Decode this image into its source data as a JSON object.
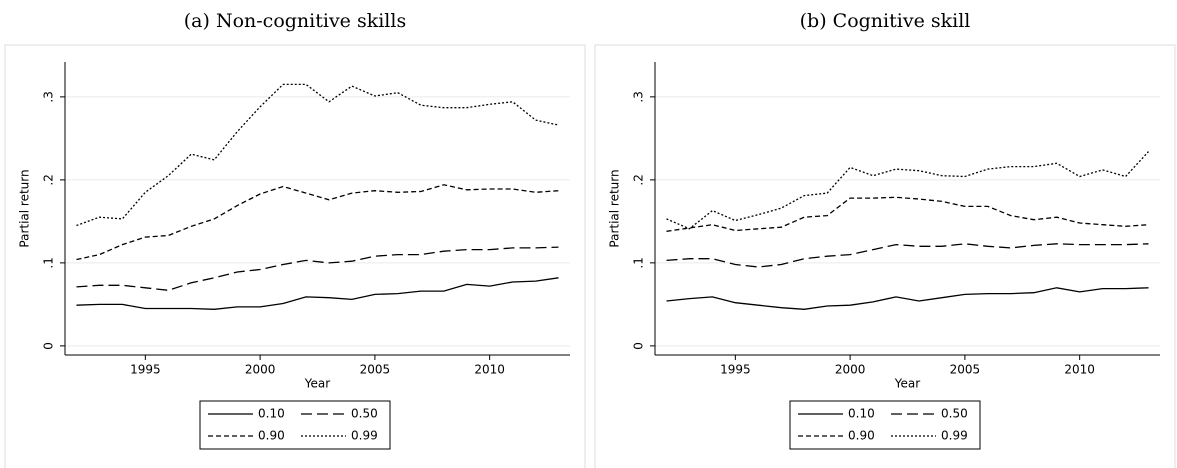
{
  "chart_data": [
    {
      "type": "line",
      "title": "(a) Non-cognitive skills",
      "xlabel": "Year",
      "ylabel": "Partial return",
      "x": [
        1992,
        1993,
        1994,
        1995,
        1996,
        1997,
        1998,
        1999,
        2000,
        2001,
        2002,
        2003,
        2004,
        2005,
        2006,
        2007,
        2008,
        2009,
        2010,
        2011,
        2012,
        2013
      ],
      "xlim": [
        1991.5,
        2013.5
      ],
      "xticks": [
        1995,
        2000,
        2005,
        2010
      ],
      "ylim": [
        -0.011,
        0.342
      ],
      "yticks": [
        0,
        {
          "value": 0.1,
          "label": ".1"
        },
        {
          "value": 0.2,
          "label": ".2"
        },
        {
          "value": 0.3,
          "label": ".3"
        }
      ],
      "grid": true,
      "series": [
        {
          "name": "0.10",
          "color": "#000000",
          "dash": "none",
          "values": [
            0.049,
            0.05,
            0.05,
            0.045,
            0.045,
            0.045,
            0.044,
            0.047,
            0.047,
            0.051,
            0.059,
            0.058,
            0.056,
            0.062,
            0.063,
            0.066,
            0.066,
            0.074,
            0.072,
            0.077,
            0.078,
            0.082
          ]
        },
        {
          "name": "0.50",
          "color": "#000000",
          "dash": "11,5",
          "values": [
            0.071,
            0.073,
            0.073,
            0.07,
            0.067,
            0.076,
            0.082,
            0.089,
            0.092,
            0.098,
            0.103,
            0.1,
            0.102,
            0.108,
            0.11,
            0.11,
            0.114,
            0.116,
            0.116,
            0.118,
            0.118,
            0.119
          ]
        },
        {
          "name": "0.90",
          "color": "#000000",
          "dash": "5,3",
          "values": [
            0.104,
            0.11,
            0.122,
            0.131,
            0.133,
            0.144,
            0.153,
            0.169,
            0.183,
            0.192,
            0.184,
            0.176,
            0.184,
            0.187,
            0.185,
            0.186,
            0.194,
            0.188,
            0.189,
            0.189,
            0.185,
            0.187
          ]
        },
        {
          "name": "0.99",
          "color": "#000000",
          "dash": "2,2",
          "values": [
            0.145,
            0.155,
            0.153,
            0.185,
            0.205,
            0.231,
            0.224,
            0.258,
            0.288,
            0.315,
            0.315,
            0.294,
            0.313,
            0.301,
            0.305,
            0.29,
            0.287,
            0.287,
            0.291,
            0.294,
            0.272,
            0.266
          ]
        }
      ]
    },
    {
      "type": "line",
      "title": "(b) Cognitive skill",
      "xlabel": "Year",
      "ylabel": "Partial return",
      "x": [
        1992,
        1993,
        1994,
        1995,
        1996,
        1997,
        1998,
        1999,
        2000,
        2001,
        2002,
        2003,
        2004,
        2005,
        2006,
        2007,
        2008,
        2009,
        2010,
        2011,
        2012,
        2013
      ],
      "xlim": [
        1991.5,
        2013.5
      ],
      "xticks": [
        1995,
        2000,
        2005,
        2010
      ],
      "ylim": [
        -0.011,
        0.342
      ],
      "yticks": [
        0,
        {
          "value": 0.1,
          "label": ".1"
        },
        {
          "value": 0.2,
          "label": ".2"
        },
        {
          "value": 0.3,
          "label": ".3"
        }
      ],
      "grid": true,
      "series": [
        {
          "name": "0.10",
          "color": "#000000",
          "dash": "none",
          "values": [
            0.054,
            0.057,
            0.059,
            0.052,
            0.049,
            0.046,
            0.044,
            0.048,
            0.049,
            0.053,
            0.059,
            0.054,
            0.058,
            0.062,
            0.063,
            0.063,
            0.064,
            0.07,
            0.065,
            0.069,
            0.069,
            0.07
          ]
        },
        {
          "name": "0.50",
          "color": "#000000",
          "dash": "11,5",
          "values": [
            0.103,
            0.105,
            0.105,
            0.098,
            0.095,
            0.098,
            0.105,
            0.108,
            0.11,
            0.116,
            0.122,
            0.12,
            0.12,
            0.123,
            0.12,
            0.118,
            0.121,
            0.123,
            0.122,
            0.122,
            0.122,
            0.123
          ]
        },
        {
          "name": "0.90",
          "color": "#000000",
          "dash": "5,3",
          "values": [
            0.138,
            0.142,
            0.146,
            0.139,
            0.141,
            0.143,
            0.155,
            0.157,
            0.178,
            0.178,
            0.179,
            0.177,
            0.174,
            0.168,
            0.168,
            0.157,
            0.152,
            0.155,
            0.148,
            0.146,
            0.144,
            0.146
          ]
        },
        {
          "name": "0.99",
          "color": "#000000",
          "dash": "2,2",
          "values": [
            0.153,
            0.141,
            0.163,
            0.151,
            0.158,
            0.166,
            0.181,
            0.184,
            0.215,
            0.205,
            0.213,
            0.211,
            0.205,
            0.204,
            0.213,
            0.216,
            0.216,
            0.22,
            0.204,
            0.212,
            0.204,
            0.234
          ]
        }
      ]
    }
  ]
}
